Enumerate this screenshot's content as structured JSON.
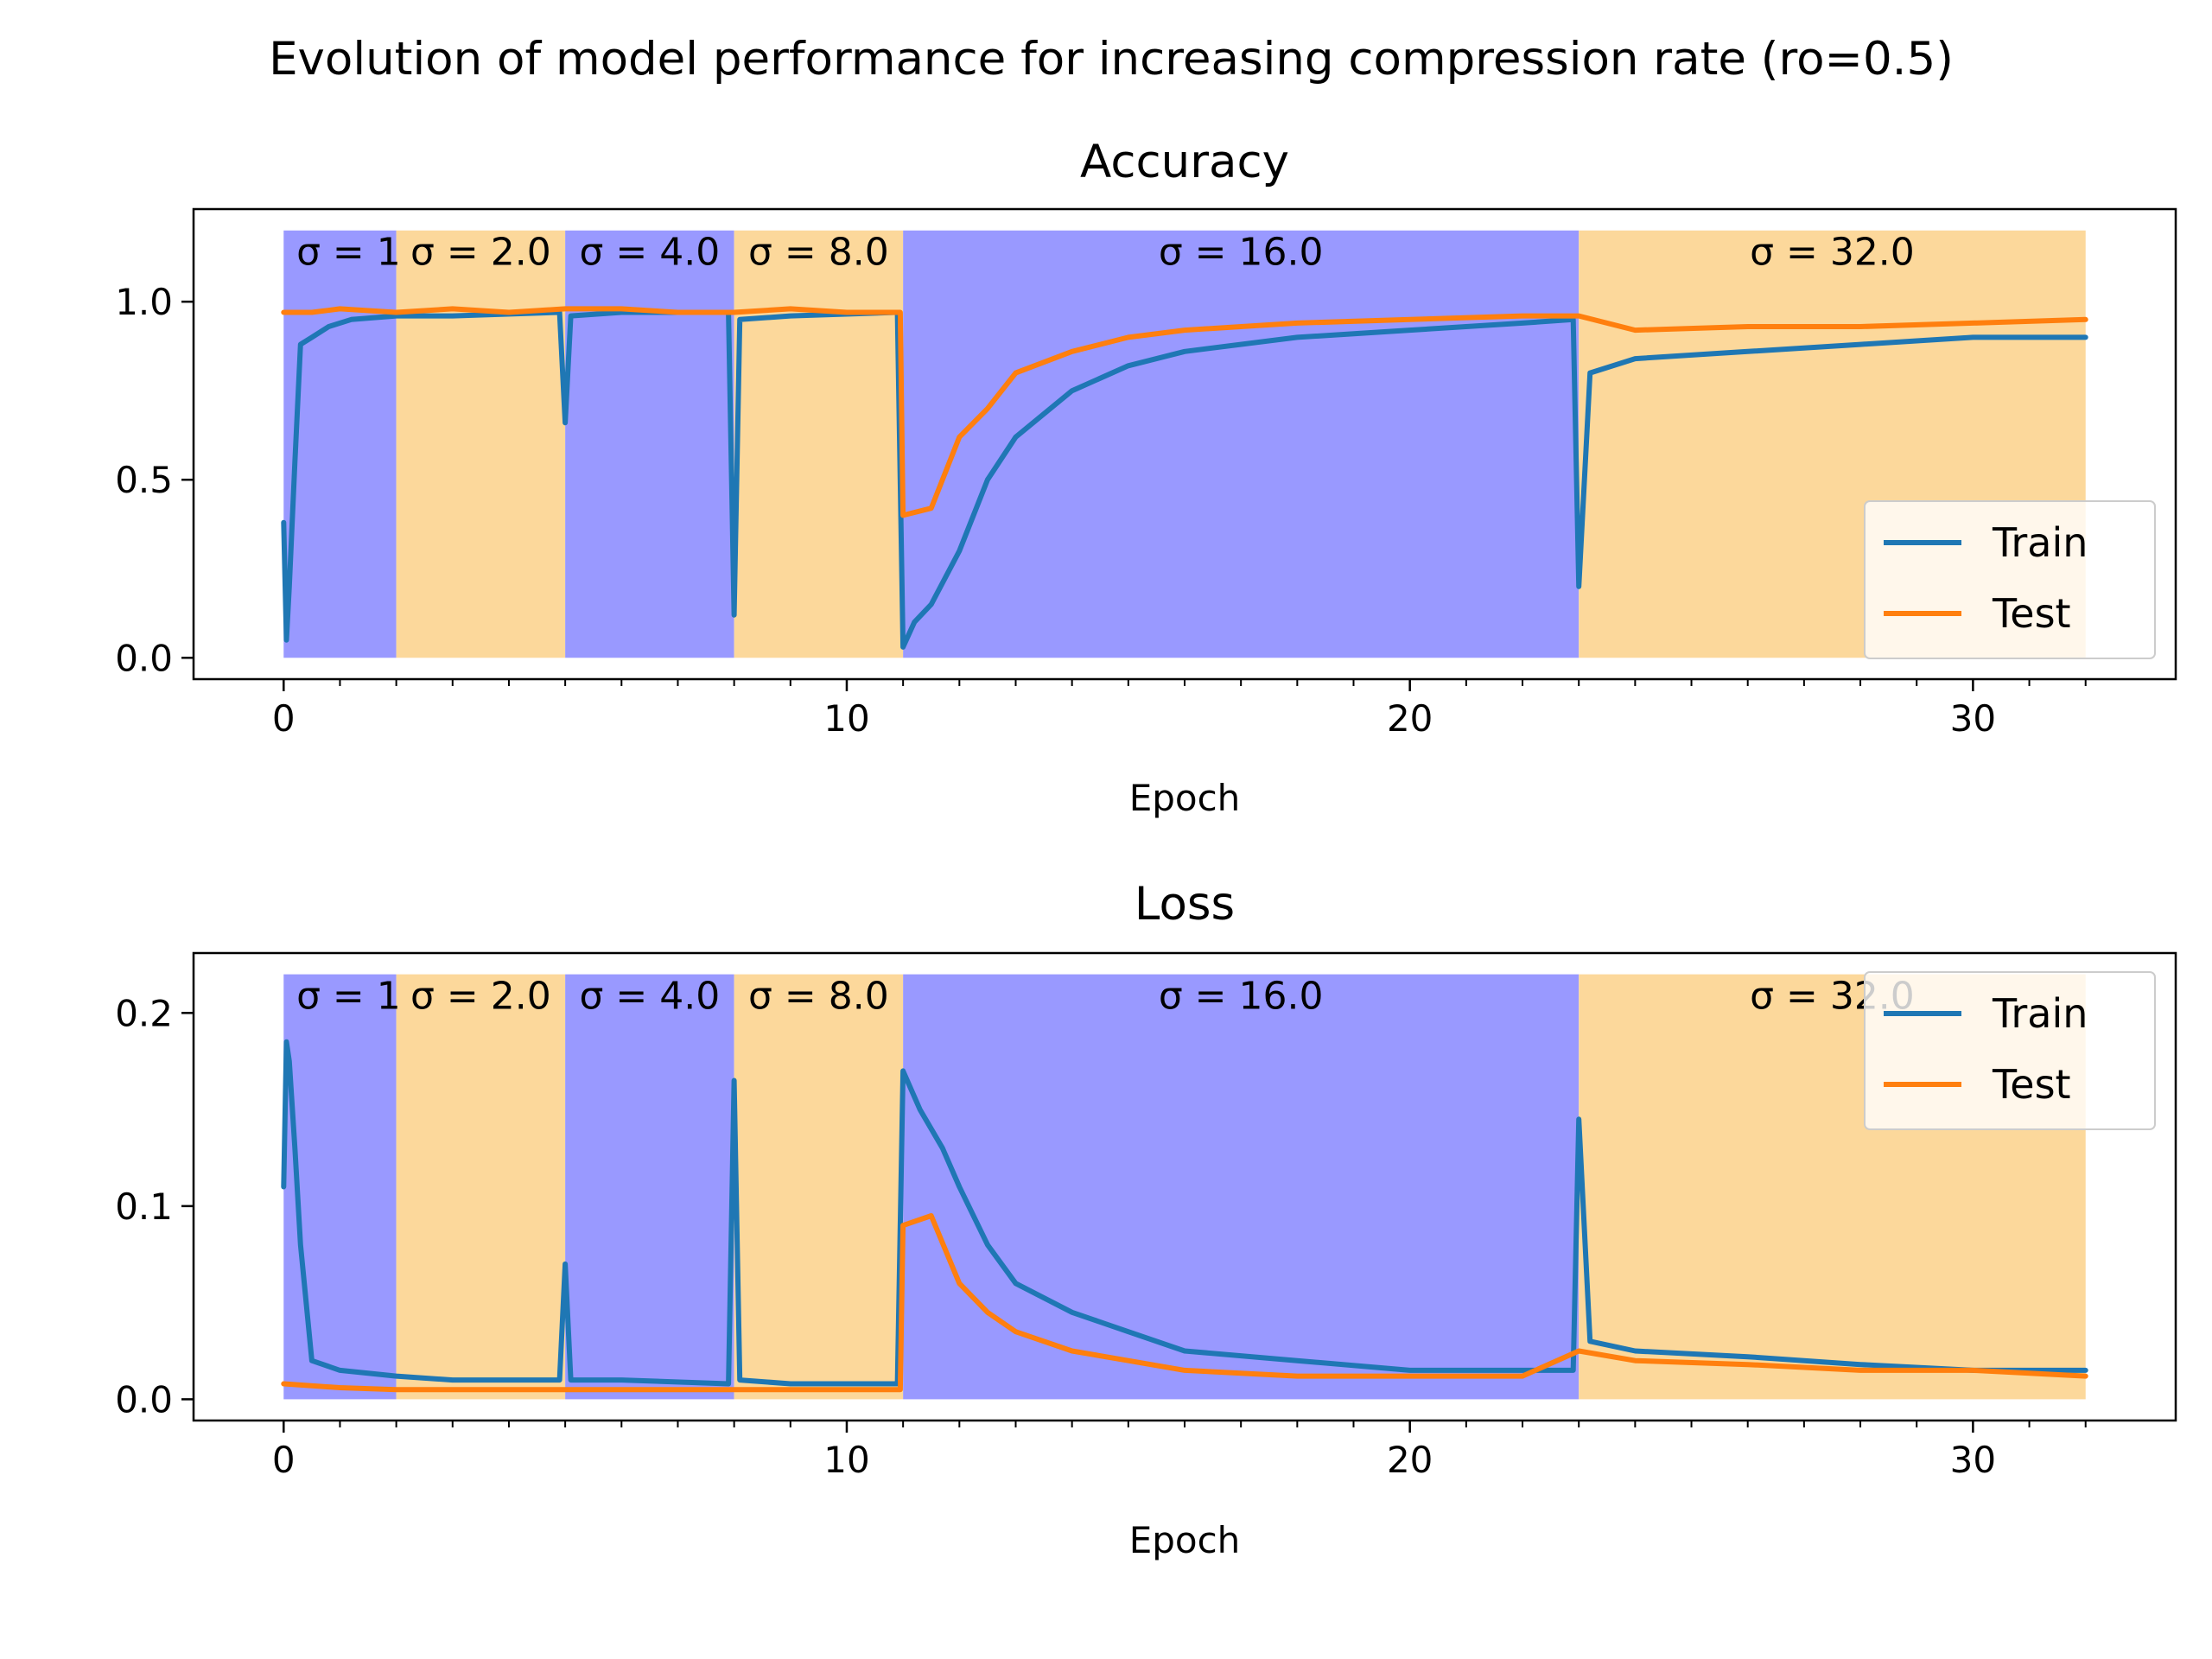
{
  "figure": {
    "suptitle": "Evolution of model performance for increasing compression rate (ro=0.5)"
  },
  "colors": {
    "train": "#1f77b4",
    "test": "#ff7f0e",
    "band_blue": "#9999ff",
    "band_orange": "#fcd89b"
  },
  "chart_data": [
    {
      "type": "line",
      "title": "Accuracy",
      "xlabel": "Epoch",
      "ylabel": "",
      "xlim": [
        -1.6,
        33.6
      ],
      "ylim": [
        -0.06,
        1.26
      ],
      "xticks": [
        0,
        10,
        20,
        30
      ],
      "yticks": [
        0.0,
        0.5,
        1.0
      ],
      "ytick_labels": [
        "0.0",
        "0.5",
        "1.0"
      ],
      "legend": {
        "placement": "lower-right",
        "entries": [
          "Train",
          "Test"
        ]
      },
      "bands": [
        {
          "x0": 0,
          "x1": 2,
          "label": "σ = 1",
          "color": "blue"
        },
        {
          "x0": 2,
          "x1": 5,
          "label": "σ = 2.0",
          "color": "orange"
        },
        {
          "x0": 5,
          "x1": 8,
          "label": "σ = 4.0",
          "color": "blue"
        },
        {
          "x0": 8,
          "x1": 11,
          "label": "σ = 8.0",
          "color": "orange"
        },
        {
          "x0": 11,
          "x1": 23,
          "label": "σ = 16.0",
          "color": "blue"
        },
        {
          "x0": 23,
          "x1": 32,
          "label": "σ = 32.0",
          "color": "orange"
        }
      ],
      "band_ylim": [
        0,
        1.2
      ],
      "series": [
        {
          "name": "Train",
          "x": [
            0,
            0.05,
            0.1,
            0.2,
            0.3,
            0.5,
            0.8,
            1.2,
            2,
            3,
            4.9,
            5.0,
            5.1,
            6,
            7.9,
            8.0,
            8.1,
            9,
            10.9,
            11.0,
            11.2,
            11.5,
            12,
            12.5,
            13,
            14,
            15,
            16,
            18,
            20,
            22,
            22.9,
            23.0,
            23.2,
            24,
            26,
            28,
            30,
            32
          ],
          "values": [
            0.38,
            0.05,
            0.2,
            0.55,
            0.88,
            0.9,
            0.93,
            0.95,
            0.96,
            0.96,
            0.97,
            0.66,
            0.96,
            0.97,
            0.97,
            0.12,
            0.95,
            0.96,
            0.97,
            0.03,
            0.1,
            0.15,
            0.3,
            0.5,
            0.62,
            0.75,
            0.82,
            0.86,
            0.9,
            0.92,
            0.94,
            0.95,
            0.2,
            0.8,
            0.84,
            0.86,
            0.88,
            0.9,
            0.9
          ]
        },
        {
          "name": "Test",
          "x": [
            0,
            0.5,
            1,
            2,
            3,
            4,
            5,
            6,
            7,
            8,
            9,
            10,
            10.95,
            11.0,
            11.5,
            12,
            12.5,
            13,
            14,
            15,
            16,
            18,
            20,
            22,
            23,
            24,
            26,
            28,
            30,
            32
          ],
          "values": [
            0.97,
            0.97,
            0.98,
            0.97,
            0.98,
            0.97,
            0.98,
            0.98,
            0.97,
            0.97,
            0.98,
            0.97,
            0.97,
            0.4,
            0.42,
            0.62,
            0.7,
            0.8,
            0.86,
            0.9,
            0.92,
            0.94,
            0.95,
            0.96,
            0.96,
            0.92,
            0.93,
            0.93,
            0.94,
            0.95
          ]
        }
      ]
    },
    {
      "type": "line",
      "title": "Loss",
      "xlabel": "Epoch",
      "ylabel": "",
      "xlim": [
        -1.6,
        33.6
      ],
      "ylim": [
        -0.011,
        0.231
      ],
      "xticks": [
        0,
        10,
        20,
        30
      ],
      "yticks": [
        0.0,
        0.1,
        0.2
      ],
      "ytick_labels": [
        "0.0",
        "0.1",
        "0.2"
      ],
      "legend": {
        "placement": "upper-right",
        "entries": [
          "Train",
          "Test"
        ]
      },
      "bands": [
        {
          "x0": 0,
          "x1": 2,
          "label": "σ = 1",
          "color": "blue"
        },
        {
          "x0": 2,
          "x1": 5,
          "label": "σ = 2.0",
          "color": "orange"
        },
        {
          "x0": 5,
          "x1": 8,
          "label": "σ = 4.0",
          "color": "blue"
        },
        {
          "x0": 8,
          "x1": 11,
          "label": "σ = 8.0",
          "color": "orange"
        },
        {
          "x0": 11,
          "x1": 23,
          "label": "σ = 16.0",
          "color": "blue"
        },
        {
          "x0": 23,
          "x1": 32,
          "label": "σ = 32.0",
          "color": "orange"
        }
      ],
      "band_ylim": [
        0,
        0.22
      ],
      "series": [
        {
          "name": "Train",
          "x": [
            0,
            0.05,
            0.1,
            0.2,
            0.3,
            0.5,
            1,
            2,
            3,
            4.9,
            5.0,
            5.1,
            6,
            7.9,
            8.0,
            8.1,
            9,
            10.9,
            11.0,
            11.3,
            11.7,
            12,
            12.5,
            13,
            14,
            15,
            16,
            18,
            20,
            22,
            22.9,
            23.0,
            23.2,
            24,
            26,
            28,
            30,
            32
          ],
          "values": [
            0.11,
            0.185,
            0.175,
            0.13,
            0.08,
            0.02,
            0.015,
            0.012,
            0.01,
            0.01,
            0.07,
            0.01,
            0.01,
            0.008,
            0.165,
            0.01,
            0.008,
            0.008,
            0.17,
            0.15,
            0.13,
            0.11,
            0.08,
            0.06,
            0.045,
            0.035,
            0.025,
            0.02,
            0.015,
            0.015,
            0.015,
            0.145,
            0.03,
            0.025,
            0.022,
            0.018,
            0.015,
            0.015
          ]
        },
        {
          "name": "Test",
          "x": [
            0,
            1,
            2,
            3,
            4,
            5,
            6,
            7,
            8,
            9,
            10,
            10.95,
            11.0,
            11.5,
            12,
            12.5,
            13,
            14,
            15,
            16,
            18,
            20,
            22,
            23,
            24,
            26,
            28,
            30,
            32
          ],
          "values": [
            0.008,
            0.006,
            0.005,
            0.005,
            0.005,
            0.005,
            0.005,
            0.005,
            0.005,
            0.005,
            0.005,
            0.005,
            0.09,
            0.095,
            0.06,
            0.045,
            0.035,
            0.025,
            0.02,
            0.015,
            0.012,
            0.012,
            0.012,
            0.025,
            0.02,
            0.018,
            0.015,
            0.015,
            0.012
          ]
        }
      ]
    }
  ]
}
